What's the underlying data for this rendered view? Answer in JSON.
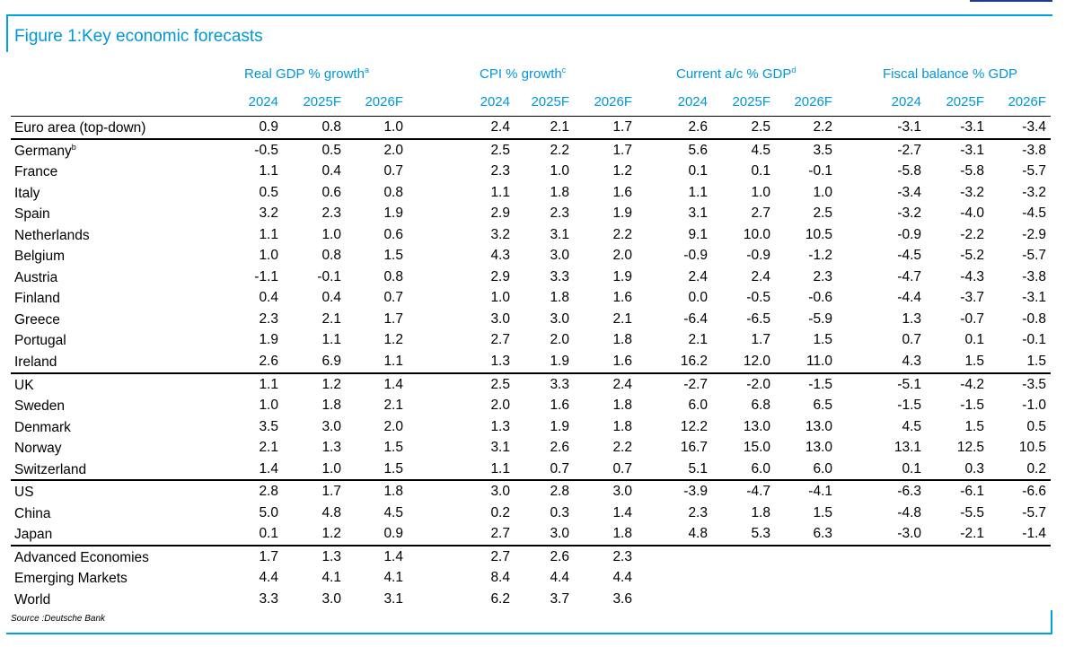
{
  "figure_title": "Figure 1:Key economic forecasts",
  "groups": [
    {
      "label": "Real GDP % growth",
      "note": "a"
    },
    {
      "label": "CPI % growth",
      "note": "c"
    },
    {
      "label": "Current a/c % GDP",
      "note": "d"
    },
    {
      "label": "Fiscal balance % GDP",
      "note": ""
    }
  ],
  "years": [
    "2024",
    "2025F",
    "2026F"
  ],
  "rows": [
    {
      "country": "Euro area (top-down)",
      "note": "",
      "values": [
        "0.9",
        "0.8",
        "1.0",
        "2.4",
        "2.1",
        "1.7",
        "2.6",
        "2.5",
        "2.2",
        "-3.1",
        "-3.1",
        "-3.4"
      ]
    },
    {
      "country": "Germany",
      "note": "b",
      "values": [
        "-0.5",
        "0.5",
        "2.0",
        "2.5",
        "2.2",
        "1.7",
        "5.6",
        "4.5",
        "3.5",
        "-2.7",
        "-3.1",
        "-3.8"
      ]
    },
    {
      "country": "France",
      "note": "",
      "values": [
        "1.1",
        "0.4",
        "0.7",
        "2.3",
        "1.0",
        "1.2",
        "0.1",
        "0.1",
        "-0.1",
        "-5.8",
        "-5.8",
        "-5.7"
      ]
    },
    {
      "country": "Italy",
      "note": "",
      "values": [
        "0.5",
        "0.6",
        "0.8",
        "1.1",
        "1.8",
        "1.6",
        "1.1",
        "1.0",
        "1.0",
        "-3.4",
        "-3.2",
        "-3.2"
      ]
    },
    {
      "country": "Spain",
      "note": "",
      "values": [
        "3.2",
        "2.3",
        "1.9",
        "2.9",
        "2.3",
        "1.9",
        "3.1",
        "2.7",
        "2.5",
        "-3.2",
        "-4.0",
        "-4.5"
      ]
    },
    {
      "country": "Netherlands",
      "note": "",
      "values": [
        "1.1",
        "1.0",
        "0.6",
        "3.2",
        "3.1",
        "2.2",
        "9.1",
        "10.0",
        "10.5",
        "-0.9",
        "-2.2",
        "-2.9"
      ]
    },
    {
      "country": "Belgium",
      "note": "",
      "values": [
        "1.0",
        "0.8",
        "1.5",
        "4.3",
        "3.0",
        "2.0",
        "-0.9",
        "-0.9",
        "-1.2",
        "-4.5",
        "-5.2",
        "-5.7"
      ]
    },
    {
      "country": "Austria",
      "note": "",
      "values": [
        "-1.1",
        "-0.1",
        "0.8",
        "2.9",
        "3.3",
        "1.9",
        "2.4",
        "2.4",
        "2.3",
        "-4.7",
        "-4.3",
        "-3.8"
      ]
    },
    {
      "country": "Finland",
      "note": "",
      "values": [
        "0.4",
        "0.4",
        "0.7",
        "1.0",
        "1.8",
        "1.6",
        "0.0",
        "-0.5",
        "-0.6",
        "-4.4",
        "-3.7",
        "-3.1"
      ]
    },
    {
      "country": "Greece",
      "note": "",
      "values": [
        "2.3",
        "2.1",
        "1.7",
        "3.0",
        "3.0",
        "2.1",
        "-6.4",
        "-6.5",
        "-5.9",
        "1.3",
        "-0.7",
        "-0.8"
      ]
    },
    {
      "country": "Portugal",
      "note": "",
      "values": [
        "1.9",
        "1.1",
        "1.2",
        "2.7",
        "2.0",
        "1.8",
        "2.1",
        "1.7",
        "1.5",
        "0.7",
        "0.1",
        "-0.1"
      ]
    },
    {
      "country": "Ireland",
      "note": "",
      "values": [
        "2.6",
        "6.9",
        "1.1",
        "1.3",
        "1.9",
        "1.6",
        "16.2",
        "12.0",
        "11.0",
        "4.3",
        "1.5",
        "1.5"
      ]
    },
    {
      "country": "UK",
      "note": "",
      "values": [
        "1.1",
        "1.2",
        "1.4",
        "2.5",
        "3.3",
        "2.4",
        "-2.7",
        "-2.0",
        "-1.5",
        "-5.1",
        "-4.2",
        "-3.5"
      ]
    },
    {
      "country": "Sweden",
      "note": "",
      "values": [
        "1.0",
        "1.8",
        "2.1",
        "2.0",
        "1.6",
        "1.8",
        "6.0",
        "6.8",
        "6.5",
        "-1.5",
        "-1.5",
        "-1.0"
      ]
    },
    {
      "country": "Denmark",
      "note": "",
      "values": [
        "3.5",
        "3.0",
        "2.0",
        "1.3",
        "1.9",
        "1.8",
        "12.2",
        "13.0",
        "13.0",
        "4.5",
        "1.5",
        "0.5"
      ]
    },
    {
      "country": "Norway",
      "note": "",
      "values": [
        "2.1",
        "1.3",
        "1.5",
        "3.1",
        "2.6",
        "2.2",
        "16.7",
        "15.0",
        "13.0",
        "13.1",
        "12.5",
        "10.5"
      ]
    },
    {
      "country": "Switzerland",
      "note": "",
      "values": [
        "1.4",
        "1.0",
        "1.5",
        "1.1",
        "0.7",
        "0.7",
        "5.1",
        "6.0",
        "6.0",
        "0.1",
        "0.3",
        "0.2"
      ]
    },
    {
      "country": "US",
      "note": "",
      "values": [
        "2.8",
        "1.7",
        "1.8",
        "3.0",
        "2.8",
        "3.0",
        "-3.9",
        "-4.7",
        "-4.1",
        "-6.3",
        "-6.1",
        "-6.6"
      ]
    },
    {
      "country": "China",
      "note": "",
      "values": [
        "5.0",
        "4.8",
        "4.5",
        "0.2",
        "0.3",
        "1.4",
        "2.3",
        "1.8",
        "1.5",
        "-4.8",
        "-5.5",
        "-5.7"
      ]
    },
    {
      "country": "Japan",
      "note": "",
      "values": [
        "0.1",
        "1.2",
        "0.9",
        "2.7",
        "3.0",
        "1.8",
        "4.8",
        "5.3",
        "6.3",
        "-3.0",
        "-2.1",
        "-1.4"
      ]
    },
    {
      "country": "Advanced Economies",
      "note": "",
      "values": [
        "1.7",
        "1.3",
        "1.4",
        "2.7",
        "2.6",
        "2.3",
        "",
        "",
        "",
        "",
        "",
        ""
      ]
    },
    {
      "country": "Emerging Markets",
      "note": "",
      "values": [
        "4.4",
        "4.1",
        "4.1",
        "8.4",
        "4.4",
        "4.4",
        "",
        "",
        "",
        "",
        "",
        ""
      ]
    },
    {
      "country": "World",
      "note": "",
      "values": [
        "3.3",
        "3.0",
        "3.1",
        "6.2",
        "3.7",
        "3.6",
        "",
        "",
        "",
        "",
        "",
        ""
      ]
    }
  ],
  "source": "Source :Deutsche Bank"
}
